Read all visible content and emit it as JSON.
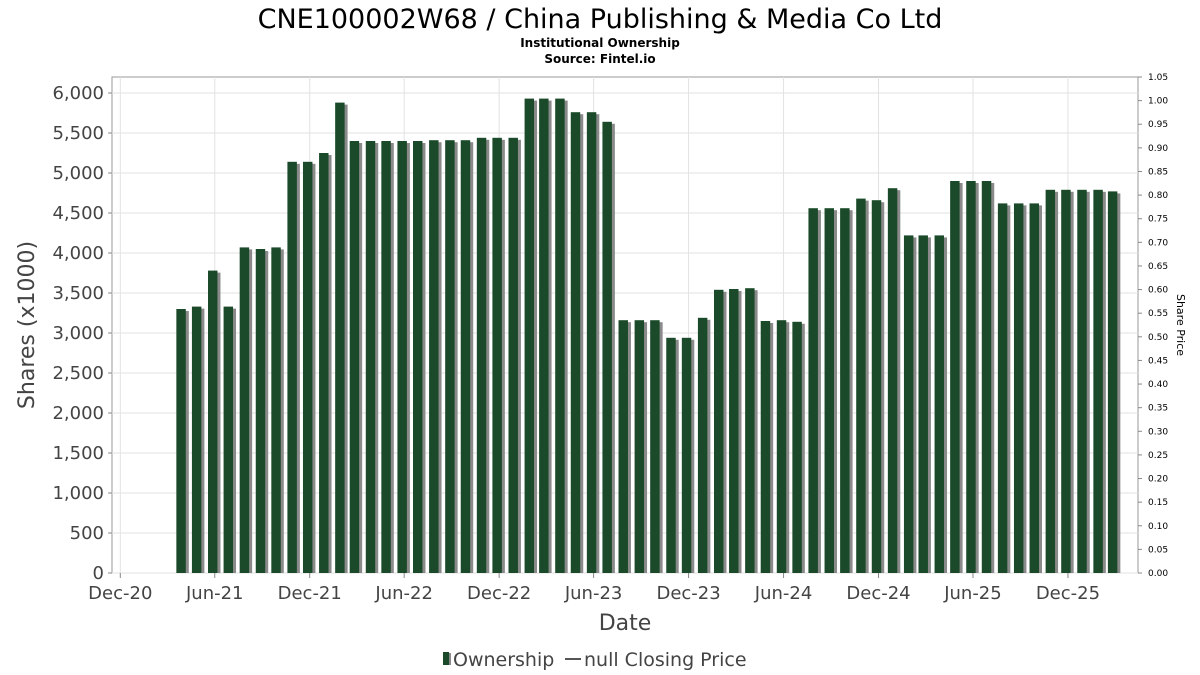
{
  "chart_data": {
    "type": "bar",
    "title": "CNE100002W68 / China Publishing & Media Co Ltd",
    "subtitle_lines": [
      "Institutional Ownership",
      "Source: Fintel.io"
    ],
    "xlabel": "Date",
    "ylabel": "Shares (x1000)",
    "y2label": "Share Price",
    "ylim": [
      0,
      6200
    ],
    "y2lim": [
      0,
      1.05
    ],
    "x_range": [
      "2020-11-15",
      "2026-04-15"
    ],
    "y_ticks": [
      0,
      500,
      1000,
      1500,
      2000,
      2500,
      3000,
      3500,
      4000,
      4500,
      5000,
      5500,
      6000
    ],
    "y_tick_labels": [
      "0",
      "500",
      "1,000",
      "1,500",
      "2,000",
      "2,500",
      "3,000",
      "3,500",
      "4,000",
      "4,500",
      "5,000",
      "5,500",
      "6,000"
    ],
    "y2_ticks": [
      "0.00",
      "0.05",
      "0.10",
      "0.15",
      "0.20",
      "0.25",
      "0.30",
      "0.35",
      "0.40",
      "0.45",
      "0.50",
      "0.55",
      "0.60",
      "0.65",
      "0.70",
      "0.75",
      "0.80",
      "0.85",
      "0.90",
      "0.95",
      "1.00",
      "1.05"
    ],
    "x_tick_labels": [
      "Dec-20",
      "Jun-21",
      "Dec-21",
      "Jun-22",
      "Dec-22",
      "Jun-23",
      "Dec-23",
      "Jun-24",
      "Dec-24",
      "Jun-25",
      "Dec-25"
    ],
    "x_tick_dates": [
      "2020-12-01",
      "2021-06-01",
      "2021-12-01",
      "2022-06-01",
      "2022-12-01",
      "2023-06-01",
      "2023-12-01",
      "2024-06-01",
      "2024-12-01",
      "2025-06-01",
      "2025-12-01"
    ],
    "grid": true,
    "legend_position": "bottom-center",
    "bar_color": "#1b4a2a",
    "bar_shadow_color": "#8a8a8a",
    "series": [
      {
        "name": "Ownership",
        "x": [
          "2021-03-31",
          "2021-04-30",
          "2021-05-31",
          "2021-06-30",
          "2021-07-31",
          "2021-08-31",
          "2021-09-30",
          "2021-10-31",
          "2021-11-30",
          "2021-12-31",
          "2022-01-31",
          "2022-02-28",
          "2022-03-31",
          "2022-04-30",
          "2022-05-31",
          "2022-06-30",
          "2022-07-31",
          "2022-08-31",
          "2022-09-30",
          "2022-10-31",
          "2022-11-30",
          "2022-12-31",
          "2023-01-31",
          "2023-02-28",
          "2023-03-31",
          "2023-04-30",
          "2023-05-31",
          "2023-06-30",
          "2023-07-31",
          "2023-08-31",
          "2023-09-30",
          "2023-10-31",
          "2023-11-30",
          "2023-12-31",
          "2024-01-31",
          "2024-02-29",
          "2024-03-31",
          "2024-04-30",
          "2024-05-31",
          "2024-06-30",
          "2024-07-31",
          "2024-08-31",
          "2024-09-30",
          "2024-10-31",
          "2024-11-30",
          "2024-12-31",
          "2025-01-31",
          "2025-02-28",
          "2025-03-31",
          "2025-04-30",
          "2025-05-31",
          "2025-06-30",
          "2025-07-31",
          "2025-08-31",
          "2025-09-30",
          "2025-10-31",
          "2025-11-30",
          "2025-12-31",
          "2026-01-31",
          "2026-02-28"
        ],
        "values": [
          3300,
          3330,
          3780,
          3330,
          4070,
          4050,
          4070,
          5140,
          5140,
          5250,
          5880,
          5400,
          5400,
          5400,
          5400,
          5400,
          5410,
          5410,
          5410,
          5440,
          5440,
          5440,
          5930,
          5930,
          5930,
          5760,
          5760,
          5640,
          3160,
          3160,
          3160,
          2940,
          2940,
          3190,
          3540,
          3550,
          3560,
          3150,
          3160,
          3140,
          4560,
          4560,
          4560,
          4680,
          4660,
          4810,
          4220,
          4220,
          4220,
          4900,
          4900,
          4900,
          4620,
          4620,
          4620,
          4790,
          4790,
          4790,
          4790,
          4770
        ]
      }
    ],
    "legend": [
      {
        "label": "Ownership",
        "marker": "bar"
      },
      {
        "label": "null Closing Price",
        "marker": "line"
      }
    ]
  }
}
